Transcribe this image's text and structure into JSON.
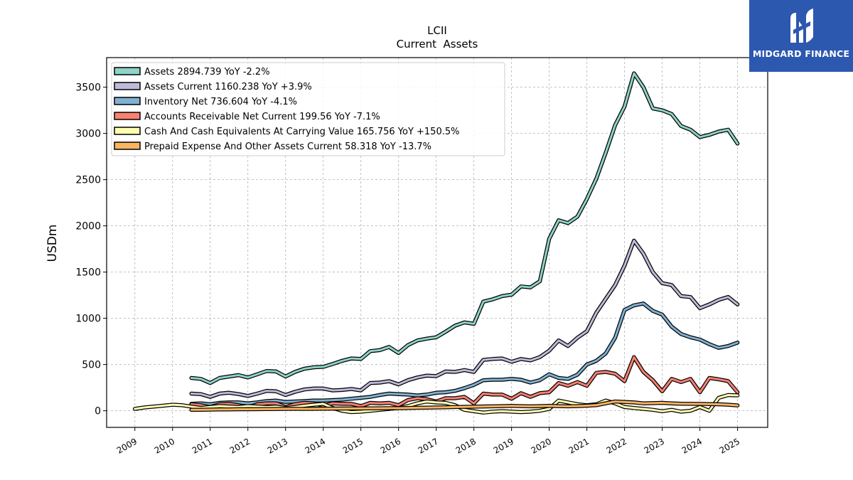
{
  "brand": {
    "name": "MIDGARD FINANCE"
  },
  "chart_data": {
    "type": "line",
    "title": "LCII",
    "subtitle": "Current  Assets",
    "ylabel": "USDm",
    "xlabel": "",
    "xlim": [
      2008.25,
      2025.8
    ],
    "ylim": [
      -180,
      3820
    ],
    "yticks": [
      0,
      500,
      1000,
      1500,
      2000,
      2500,
      3000,
      3500
    ],
    "xticks": [
      2009,
      2010,
      2011,
      2012,
      2013,
      2014,
      2015,
      2016,
      2017,
      2018,
      2019,
      2020,
      2021,
      2022,
      2023,
      2024,
      2025
    ],
    "grid": true,
    "legend_position": "top-left",
    "series": [
      {
        "name": "Assets  2894.739 YoY -2.2%",
        "color": "#8dd3c7",
        "x": [
          2010.5,
          2010.75,
          2011.0,
          2011.25,
          2011.5,
          2011.75,
          2012.0,
          2012.25,
          2012.5,
          2012.75,
          2013.0,
          2013.25,
          2013.5,
          2013.75,
          2014.0,
          2014.25,
          2014.5,
          2014.75,
          2015.0,
          2015.25,
          2015.5,
          2015.75,
          2016.0,
          2016.25,
          2016.5,
          2016.75,
          2017.0,
          2017.25,
          2017.5,
          2017.75,
          2018.0,
          2018.25,
          2018.5,
          2018.75,
          2019.0,
          2019.25,
          2019.5,
          2019.75,
          2020.0,
          2020.25,
          2020.5,
          2020.75,
          2021.0,
          2021.25,
          2021.5,
          2021.75,
          2022.0,
          2022.25,
          2022.5,
          2022.75,
          2023.0,
          2023.25,
          2023.5,
          2023.75,
          2024.0,
          2024.25,
          2024.5,
          2024.75,
          2025.0
        ],
        "y": [
          355,
          345,
          300,
          355,
          370,
          385,
          360,
          395,
          430,
          425,
          370,
          420,
          455,
          470,
          475,
          505,
          540,
          565,
          560,
          645,
          655,
          690,
          625,
          710,
          760,
          780,
          795,
          855,
          920,
          955,
          940,
          1180,
          1205,
          1240,
          1255,
          1345,
          1335,
          1400,
          1860,
          2060,
          2030,
          2100,
          2290,
          2510,
          2790,
          3090,
          3290,
          3650,
          3500,
          3270,
          3250,
          3210,
          3080,
          3040,
          2960,
          2985,
          3020,
          3040,
          2890
        ]
      },
      {
        "name": "Assets Current  1160.238 YoY +3.9%",
        "color": "#bebada",
        "x": [
          2010.5,
          2010.75,
          2011.0,
          2011.25,
          2011.5,
          2011.75,
          2012.0,
          2012.25,
          2012.5,
          2012.75,
          2013.0,
          2013.25,
          2013.5,
          2013.75,
          2014.0,
          2014.25,
          2014.5,
          2014.75,
          2015.0,
          2015.25,
          2015.5,
          2015.75,
          2016.0,
          2016.25,
          2016.5,
          2016.75,
          2017.0,
          2017.25,
          2017.5,
          2017.75,
          2018.0,
          2018.25,
          2018.5,
          2018.75,
          2019.0,
          2019.25,
          2019.5,
          2019.75,
          2020.0,
          2020.25,
          2020.5,
          2020.75,
          2021.0,
          2021.25,
          2021.5,
          2021.75,
          2022.0,
          2022.25,
          2022.5,
          2022.75,
          2023.0,
          2023.25,
          2023.5,
          2023.75,
          2024.0,
          2024.25,
          2024.5,
          2024.75,
          2025.0
        ],
        "y": [
          185,
          180,
          150,
          185,
          195,
          180,
          160,
          185,
          215,
          210,
          170,
          205,
          230,
          240,
          240,
          220,
          225,
          235,
          220,
          300,
          305,
          320,
          285,
          330,
          360,
          380,
          375,
          425,
          420,
          440,
          420,
          550,
          560,
          565,
          530,
          560,
          545,
          580,
          650,
          760,
          700,
          790,
          860,
          1060,
          1210,
          1360,
          1570,
          1840,
          1700,
          1500,
          1380,
          1360,
          1240,
          1230,
          1110,
          1150,
          1200,
          1230,
          1150
        ]
      },
      {
        "name": "Inventory Net  736.604 YoY -4.1%",
        "color": "#80b1d3",
        "x": [
          2010.5,
          2010.75,
          2011.0,
          2011.25,
          2011.5,
          2011.75,
          2012.0,
          2012.25,
          2012.5,
          2012.75,
          2013.0,
          2013.25,
          2013.5,
          2013.75,
          2014.0,
          2014.25,
          2014.5,
          2014.75,
          2015.0,
          2015.25,
          2015.5,
          2015.75,
          2016.0,
          2016.25,
          2016.5,
          2016.75,
          2017.0,
          2017.25,
          2017.5,
          2017.75,
          2018.0,
          2018.25,
          2018.5,
          2018.75,
          2019.0,
          2019.25,
          2019.5,
          2019.75,
          2020.0,
          2020.25,
          2020.5,
          2020.75,
          2021.0,
          2021.25,
          2021.5,
          2021.75,
          2022.0,
          2022.25,
          2022.5,
          2022.75,
          2023.0,
          2023.25,
          2023.5,
          2023.75,
          2024.0,
          2024.25,
          2024.5,
          2024.75,
          2025.0
        ],
        "y": [
          75,
          80,
          70,
          85,
          90,
          90,
          80,
          90,
          105,
          110,
          95,
          100,
          105,
          110,
          110,
          115,
          120,
          130,
          140,
          150,
          170,
          185,
          180,
          175,
          165,
          175,
          195,
          200,
          215,
          245,
          280,
          330,
          335,
          335,
          345,
          335,
          305,
          330,
          395,
          355,
          345,
          390,
          500,
          540,
          620,
          790,
          1090,
          1140,
          1160,
          1080,
          1040,
          910,
          830,
          795,
          770,
          720,
          680,
          700,
          737
        ]
      },
      {
        "name": "Accounts Receivable Net Current  199.56 YoY -7.1%",
        "color": "#fb8072",
        "x": [
          2010.5,
          2010.75,
          2011.0,
          2011.25,
          2011.5,
          2011.75,
          2012.0,
          2012.25,
          2012.5,
          2012.75,
          2013.0,
          2013.25,
          2013.5,
          2013.75,
          2014.0,
          2014.25,
          2014.5,
          2014.75,
          2015.0,
          2015.25,
          2015.5,
          2015.75,
          2016.0,
          2016.25,
          2016.5,
          2016.75,
          2017.0,
          2017.25,
          2017.5,
          2017.75,
          2018.0,
          2018.25,
          2018.5,
          2018.75,
          2019.0,
          2019.25,
          2019.5,
          2019.75,
          2020.0,
          2020.25,
          2020.5,
          2020.75,
          2021.0,
          2021.25,
          2021.5,
          2021.75,
          2022.0,
          2022.25,
          2022.5,
          2022.75,
          2023.0,
          2023.25,
          2023.5,
          2023.75,
          2024.0,
          2024.25,
          2024.5,
          2024.75,
          2025.0
        ],
        "y": [
          70,
          60,
          40,
          70,
          75,
          60,
          35,
          70,
          80,
          80,
          40,
          70,
          85,
          80,
          55,
          80,
          75,
          75,
          50,
          85,
          80,
          85,
          60,
          115,
          135,
          125,
          100,
          135,
          135,
          150,
          80,
          185,
          175,
          175,
          130,
          190,
          150,
          190,
          200,
          300,
          270,
          310,
          270,
          410,
          420,
          400,
          320,
          580,
          420,
          330,
          210,
          345,
          310,
          345,
          200,
          355,
          340,
          320,
          200
        ]
      },
      {
        "name": "Cash And Cash Equivalents At Carrying Value  165.756 YoY +150.5%",
        "color": "#ffffb3",
        "x": [
          2009.0,
          2009.25,
          2009.5,
          2009.75,
          2010.0,
          2010.25,
          2010.5,
          2010.75,
          2011.0,
          2011.25,
          2011.5,
          2011.75,
          2012.0,
          2012.25,
          2012.5,
          2012.75,
          2013.0,
          2013.25,
          2013.5,
          2013.75,
          2014.0,
          2014.25,
          2014.5,
          2014.75,
          2015.0,
          2015.25,
          2015.5,
          2015.75,
          2016.0,
          2016.25,
          2016.5,
          2016.75,
          2017.0,
          2017.25,
          2017.5,
          2017.75,
          2018.0,
          2018.25,
          2018.5,
          2018.75,
          2019.0,
          2019.25,
          2019.5,
          2019.75,
          2020.0,
          2020.25,
          2020.5,
          2020.75,
          2021.0,
          2021.25,
          2021.5,
          2021.75,
          2022.0,
          2022.25,
          2022.5,
          2022.75,
          2023.0,
          2023.25,
          2023.5,
          2023.75,
          2024.0,
          2024.25,
          2024.5,
          2024.75,
          2025.0
        ],
        "y": [
          20,
          35,
          45,
          55,
          65,
          60,
          45,
          30,
          40,
          50,
          45,
          40,
          50,
          45,
          40,
          45,
          30,
          40,
          55,
          65,
          75,
          30,
          0,
          -15,
          -10,
          0,
          10,
          20,
          30,
          50,
          80,
          100,
          90,
          85,
          60,
          10,
          -5,
          -20,
          -10,
          -5,
          -10,
          -15,
          -10,
          0,
          20,
          110,
          90,
          70,
          60,
          70,
          110,
          80,
          40,
          30,
          20,
          10,
          -5,
          10,
          -10,
          0,
          40,
          0,
          140,
          170,
          166
        ]
      },
      {
        "name": "Prepaid Expense And Other Assets Current  58.318 YoY -13.7%",
        "color": "#fdb462",
        "x": [
          2010.5,
          2010.75,
          2011.0,
          2011.25,
          2011.5,
          2011.75,
          2012.0,
          2012.25,
          2012.5,
          2012.75,
          2013.0,
          2013.25,
          2013.5,
          2013.75,
          2014.0,
          2014.25,
          2014.5,
          2014.75,
          2015.0,
          2015.25,
          2015.5,
          2015.75,
          2016.0,
          2016.25,
          2016.5,
          2016.75,
          2017.0,
          2017.25,
          2017.5,
          2017.75,
          2018.0,
          2018.25,
          2018.5,
          2018.75,
          2019.0,
          2019.25,
          2019.5,
          2019.75,
          2020.0,
          2020.25,
          2020.5,
          2020.75,
          2021.0,
          2021.25,
          2021.5,
          2021.75,
          2022.0,
          2022.25,
          2022.5,
          2022.75,
          2023.0,
          2023.25,
          2023.5,
          2023.75,
          2024.0,
          2024.25,
          2024.5,
          2024.75,
          2025.0
        ],
        "y": [
          10,
          10,
          12,
          14,
          14,
          16,
          16,
          17,
          18,
          19,
          20,
          21,
          20,
          21,
          22,
          23,
          24,
          25,
          25,
          26,
          27,
          28,
          28,
          30,
          32,
          34,
          35,
          38,
          40,
          42,
          44,
          46,
          48,
          50,
          52,
          50,
          48,
          50,
          52,
          50,
          48,
          50,
          55,
          60,
          80,
          100,
          95,
          90,
          80,
          82,
          85,
          80,
          76,
          75,
          74,
          72,
          70,
          65,
          58
        ]
      }
    ]
  }
}
